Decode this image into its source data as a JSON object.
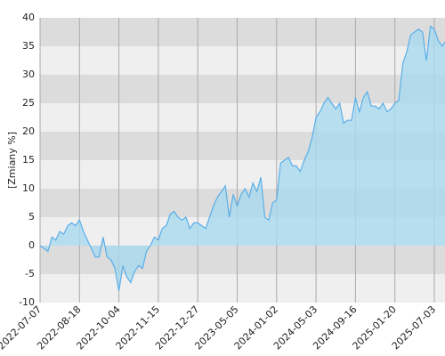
{
  "chart_data": {
    "type": "area",
    "y_label": "[Zmiany %]",
    "categories": [
      "2022-07-07",
      null,
      null,
      null,
      null,
      null,
      null,
      null,
      null,
      null,
      "2022-08-18",
      null,
      null,
      null,
      null,
      null,
      null,
      null,
      null,
      null,
      "2022-10-04",
      null,
      null,
      null,
      null,
      null,
      null,
      null,
      null,
      null,
      "2022-11-15",
      null,
      null,
      null,
      null,
      null,
      null,
      null,
      null,
      null,
      "2022-12-27",
      null,
      null,
      null,
      null,
      null,
      null,
      null,
      null,
      null,
      "2023-05-05",
      null,
      null,
      null,
      null,
      null,
      null,
      null,
      null,
      null,
      "2024-01-02",
      null,
      null,
      null,
      null,
      null,
      null,
      null,
      null,
      null,
      "2024-05-03",
      null,
      null,
      null,
      null,
      null,
      null,
      null,
      null,
      null,
      "2024-09-16",
      null,
      null,
      null,
      null,
      null,
      null,
      null,
      null,
      null,
      "2025-01-20",
      null,
      null,
      null,
      null,
      null,
      null,
      null,
      null,
      null,
      "2025-07-03",
      null,
      null,
      null
    ],
    "values": [
      0,
      -0.5,
      -1,
      1.5,
      1,
      2.5,
      2,
      3.5,
      4,
      3.5,
      4.5,
      2.5,
      1,
      -0.5,
      -2,
      -2,
      1.5,
      -2,
      -2.5,
      -4,
      -8,
      -3.5,
      -5.5,
      -6.5,
      -4.5,
      -3.5,
      -4,
      -1,
      0,
      1.5,
      1,
      3,
      3.5,
      5.5,
      6,
      5,
      4.5,
      5,
      3,
      4,
      4,
      3.5,
      3,
      5,
      7,
      8.5,
      9.5,
      10.5,
      5,
      9,
      7,
      9,
      10,
      8.5,
      11,
      9.5,
      12,
      5,
      4.5,
      7.5,
      8,
      14.5,
      15,
      15.5,
      14,
      14,
      13,
      15,
      16.5,
      19,
      22.5,
      23.5,
      25,
      26,
      25,
      24,
      25,
      21.5,
      22,
      22,
      26,
      23.5,
      26,
      27,
      24.5,
      24.5,
      24,
      25,
      23.5,
      24,
      25,
      25.5,
      32,
      34,
      37,
      37.5,
      38,
      37.5,
      32.5,
      38.5,
      38,
      36,
      35,
      36
    ],
    "color": "#5aaee8",
    "fill_color": "#a9d9ef",
    "ylim": [
      -10,
      40
    ],
    "yticks": [
      -10,
      -5,
      0,
      5,
      10,
      15,
      20,
      25,
      30,
      35,
      40
    ],
    "grid": true
  }
}
